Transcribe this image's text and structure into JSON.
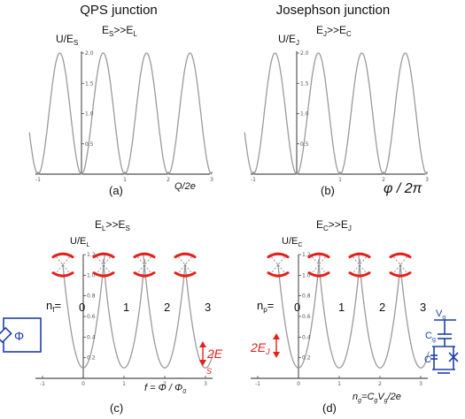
{
  "titles": {
    "left": "QPS junction",
    "right": "Josephson junction"
  },
  "chart_data": [
    {
      "panel": "(a)",
      "type": "line",
      "function": "cosine-periodic",
      "ylabel": "U/E",
      "ylabel_sub": "S",
      "condition": "E",
      "condition_sub1": "S",
      "condition_mid": ">>E",
      "condition_sub2": "L",
      "xlabel": "Q/2e",
      "xlim": [
        -1.2,
        3.0
      ],
      "ylim": [
        0,
        2.0
      ],
      "x_ticks": [
        "-1",
        "1",
        "2",
        "3"
      ],
      "y_ticks": [
        "0.5",
        "1.0",
        "1.5",
        "2.0"
      ],
      "minima_x": [
        0,
        1,
        2
      ],
      "maxima_x": [
        -0.5,
        0.5,
        1.5,
        2.5
      ]
    },
    {
      "panel": "(b)",
      "type": "line",
      "function": "cosine-periodic",
      "ylabel": "U/E",
      "ylabel_sub": "J",
      "condition": "E",
      "condition_sub1": "J",
      "condition_mid": ">>E",
      "condition_sub2": "C",
      "xlabel": "φ / 2π",
      "xlim": [
        -1.2,
        3.0
      ],
      "ylim": [
        0,
        2.0
      ],
      "x_ticks": [
        "-1",
        "1",
        "2",
        "3"
      ],
      "y_ticks": [
        "0.5",
        "1.0",
        "1.5",
        "2.0"
      ],
      "minima_x": [
        0,
        1,
        2
      ],
      "maxima_x": [
        -0.5,
        0.5,
        1.5,
        2.5
      ]
    },
    {
      "panel": "(c)",
      "type": "line",
      "function": "parabolas-with-gaps",
      "ylabel": "U/E",
      "ylabel_sub": "L",
      "condition": "E",
      "condition_sub1": "L",
      "condition_mid": ">>E",
      "condition_sub2": "S",
      "xlabel": "f = Φ / Φ",
      "xlabel_sub": "0",
      "index_label": "n",
      "index_sub": "f",
      "indices": [
        "0",
        "1",
        "2",
        "3"
      ],
      "parabola_centers": [
        0,
        1,
        2,
        3
      ],
      "gap_label": "2E",
      "gap_sub": "S",
      "xlim": [
        -1.2,
        3.2
      ],
      "ylim": [
        0,
        1.2
      ],
      "x_ticks": [
        "-1",
        "0",
        "1",
        "2",
        "3"
      ],
      "y_ticks": [
        "0.2",
        "0.4",
        "0.6",
        "0.8",
        "1.0",
        "1.2"
      ]
    },
    {
      "panel": "(d)",
      "type": "line",
      "function": "parabolas-with-gaps",
      "ylabel": "U/E",
      "ylabel_sub": "C",
      "condition": "E",
      "condition_sub1": "C",
      "condition_mid": ">>E",
      "condition_sub2": "J",
      "xlabel": "n",
      "xlabel_sub": "g",
      "xlabel_rest": "=C",
      "xlabel_sub2": "g",
      "xlabel_rest2": "V",
      "xlabel_sub3": "g",
      "xlabel_rest3": "/2e",
      "index_label": "n",
      "index_sub": "p",
      "indices": [
        "0",
        "1",
        "2",
        "3"
      ],
      "parabola_centers": [
        0,
        1,
        2,
        3
      ],
      "gap_label": "2E",
      "gap_sub": "J",
      "xlim": [
        -1.2,
        3.2
      ],
      "ylim": [
        0,
        1.2
      ],
      "x_ticks": [
        "-1",
        "0",
        "1",
        "2",
        "3"
      ],
      "y_ticks": [
        "0.2",
        "0.4",
        "0.6",
        "0.8",
        "1.0",
        "1.2"
      ]
    }
  ],
  "insets": {
    "left_symbol": "Φ",
    "right_labels": {
      "v": "V",
      "v_sub": "g",
      "c": "C",
      "c_sub": "g",
      "c2": "C"
    }
  }
}
